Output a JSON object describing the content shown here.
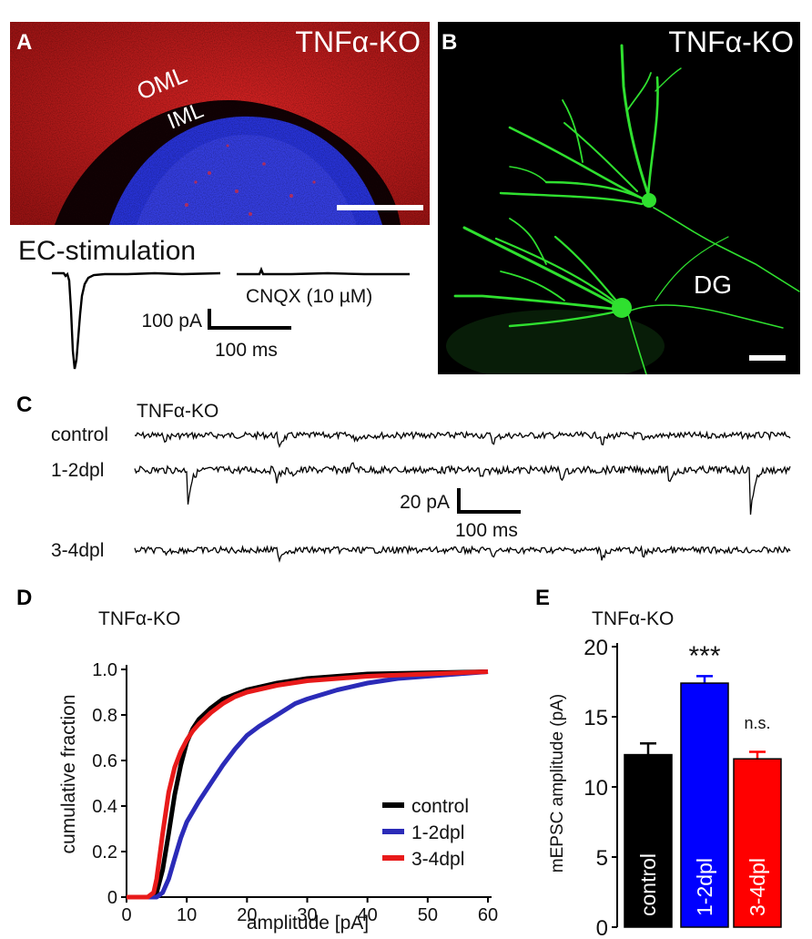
{
  "panel_a": {
    "letter": "A",
    "genotype": "TNFα-KO",
    "layer_outer": "OML",
    "layer_inner": "IML",
    "stim_label": "EC-stimulation",
    "drug_label": "CNQX (10 µM)",
    "scale_current": "100 pA",
    "scale_time": "100 ms",
    "colors": {
      "outer_layer": "#d42020",
      "granule_layer": "#2833d8",
      "background": "#120204"
    }
  },
  "panel_b": {
    "letter": "B",
    "genotype": "TNFα-KO",
    "region": "DG",
    "colors": {
      "neuron": "#2fe02f",
      "background": "#000000"
    }
  },
  "panel_c": {
    "letter": "C",
    "genotype": "TNFα-KO",
    "rows": [
      "control",
      "1-2dpl",
      "3-4dpl"
    ],
    "scale_current": "20 pA",
    "scale_time": "100 ms"
  },
  "panel_d": {
    "letter": "D",
    "genotype": "TNFα-KO"
  },
  "panel_e": {
    "letter": "E",
    "genotype": "TNFα-KO",
    "sig_1_2dpl": "***",
    "sig_3_4dpl": "n.s."
  },
  "chart_data": [
    {
      "type": "line",
      "panel": "D",
      "title": "TNFα-KO",
      "xlabel": "amplitude [pA]",
      "ylabel": "cumulative fraction",
      "xlim": [
        0,
        60
      ],
      "ylim": [
        0,
        1.0
      ],
      "xticks": [
        "0",
        "10",
        "20",
        "30",
        "40",
        "50",
        "60"
      ],
      "yticks": [
        "0",
        "0.2",
        "0.4",
        "0.6",
        "0.8",
        "1.0"
      ],
      "legend_position": "bottom-right",
      "series": [
        {
          "name": "control",
          "color": "#000000",
          "x": [
            0,
            4,
            5,
            6,
            7,
            8,
            9,
            10,
            11,
            12,
            14,
            16,
            18,
            20,
            25,
            30,
            35,
            40,
            50,
            60
          ],
          "y": [
            0,
            0,
            0.02,
            0.12,
            0.28,
            0.45,
            0.58,
            0.68,
            0.74,
            0.78,
            0.83,
            0.87,
            0.89,
            0.91,
            0.94,
            0.96,
            0.97,
            0.98,
            0.985,
            0.99
          ]
        },
        {
          "name": "1-2dpl",
          "color": "#2b2bb8",
          "x": [
            0,
            5,
            6,
            7,
            8,
            9,
            10,
            12,
            14,
            16,
            18,
            20,
            22,
            25,
            28,
            30,
            35,
            40,
            45,
            50,
            55,
            60
          ],
          "y": [
            0,
            0,
            0.02,
            0.08,
            0.17,
            0.26,
            0.33,
            0.42,
            0.5,
            0.58,
            0.65,
            0.71,
            0.75,
            0.8,
            0.85,
            0.87,
            0.91,
            0.94,
            0.96,
            0.97,
            0.98,
            0.99
          ]
        },
        {
          "name": "3-4dpl",
          "color": "#e81a1a",
          "x": [
            0,
            3.5,
            4.5,
            5,
            6,
            7,
            8,
            9,
            10,
            11,
            12,
            14,
            16,
            18,
            20,
            25,
            30,
            35,
            40,
            50,
            60
          ],
          "y": [
            0,
            0,
            0.02,
            0.08,
            0.28,
            0.46,
            0.57,
            0.64,
            0.69,
            0.73,
            0.76,
            0.81,
            0.85,
            0.88,
            0.9,
            0.93,
            0.95,
            0.96,
            0.97,
            0.98,
            0.99
          ]
        }
      ]
    },
    {
      "type": "bar",
      "panel": "E",
      "title": "TNFα-KO",
      "ylabel": "mEPSC amplitude (pA)",
      "ylim": [
        0,
        20
      ],
      "yticks": [
        "0",
        "5",
        "10",
        "15",
        "20"
      ],
      "categories": [
        "control",
        "1-2dpl",
        "3-4dpl"
      ],
      "values": [
        12.3,
        17.4,
        12.0
      ],
      "errors": [
        0.8,
        0.5,
        0.5
      ],
      "colors": [
        "#000000",
        "#0000ff",
        "#ff0000"
      ]
    }
  ]
}
